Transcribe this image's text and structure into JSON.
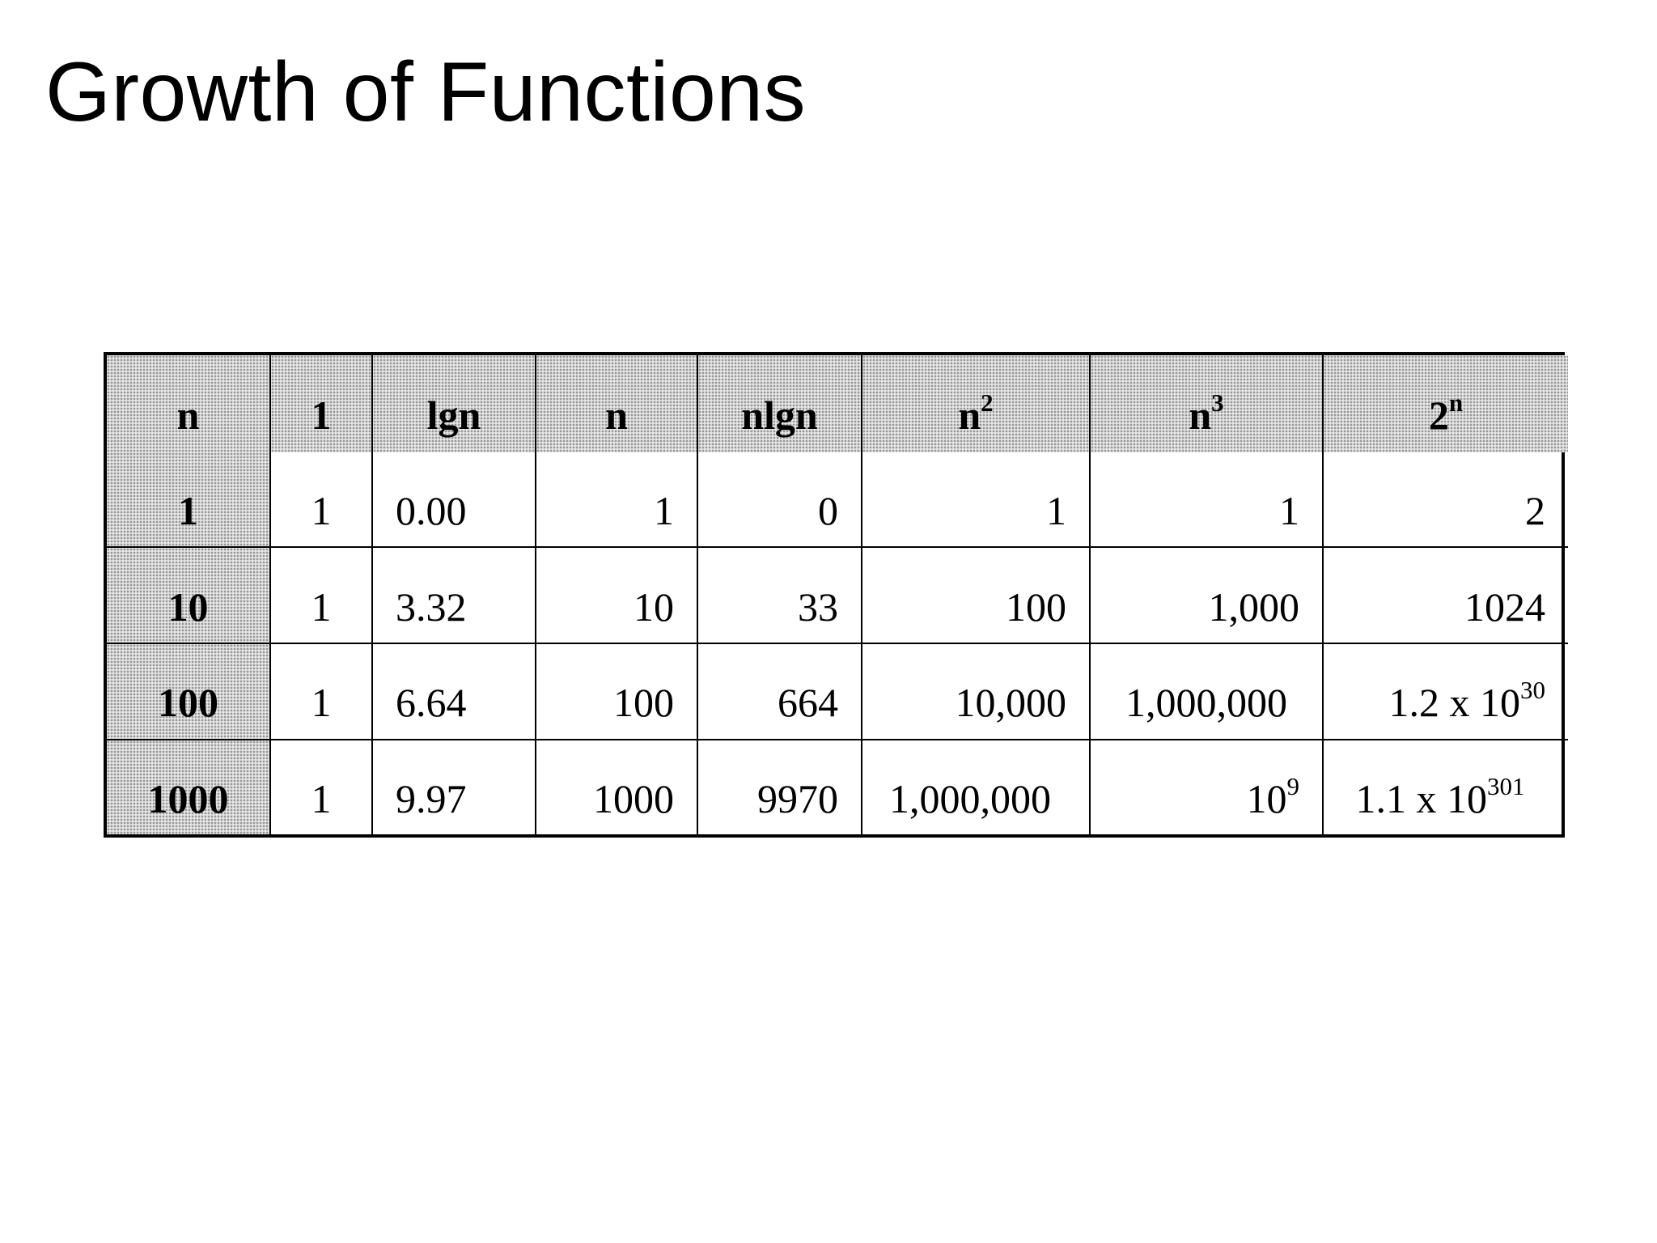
{
  "title": "Growth of Functions",
  "table": {
    "headers": [
      {
        "base": "n",
        "sup": ""
      },
      {
        "base": "1",
        "sup": ""
      },
      {
        "base": "lgn",
        "sup": ""
      },
      {
        "base": "n",
        "sup": ""
      },
      {
        "base": "nlgn",
        "sup": ""
      },
      {
        "base": "n",
        "sup": "2"
      },
      {
        "base": "n",
        "sup": "3"
      },
      {
        "base": "2",
        "sup": "n"
      }
    ],
    "rows": [
      {
        "n": "1",
        "cells": [
          {
            "base": "1",
            "sup": ""
          },
          {
            "base": "0.00",
            "sup": ""
          },
          {
            "base": "1",
            "sup": ""
          },
          {
            "base": "0",
            "sup": ""
          },
          {
            "base": "1",
            "sup": ""
          },
          {
            "base": "1",
            "sup": ""
          },
          {
            "base": "2",
            "sup": ""
          }
        ]
      },
      {
        "n": "10",
        "cells": [
          {
            "base": "1",
            "sup": ""
          },
          {
            "base": "3.32",
            "sup": ""
          },
          {
            "base": "10",
            "sup": ""
          },
          {
            "base": "33",
            "sup": ""
          },
          {
            "base": "100",
            "sup": ""
          },
          {
            "base": "1,000",
            "sup": ""
          },
          {
            "base": "1024",
            "sup": ""
          }
        ]
      },
      {
        "n": "100",
        "cells": [
          {
            "base": "1",
            "sup": ""
          },
          {
            "base": "6.64",
            "sup": ""
          },
          {
            "base": "100",
            "sup": ""
          },
          {
            "base": "664",
            "sup": ""
          },
          {
            "base": "10,000",
            "sup": ""
          },
          {
            "base": "1,000,000",
            "sup": ""
          },
          {
            "base": "1.2 x 10",
            "sup": "30"
          }
        ]
      },
      {
        "n": "1000",
        "cells": [
          {
            "base": "1",
            "sup": ""
          },
          {
            "base": "9.97",
            "sup": ""
          },
          {
            "base": "1000",
            "sup": ""
          },
          {
            "base": "9970",
            "sup": ""
          },
          {
            "base": "1,000,000",
            "sup": ""
          },
          {
            "base": "10",
            "sup": "9"
          },
          {
            "base": "1.1 x 10",
            "sup": "301"
          }
        ]
      }
    ]
  }
}
